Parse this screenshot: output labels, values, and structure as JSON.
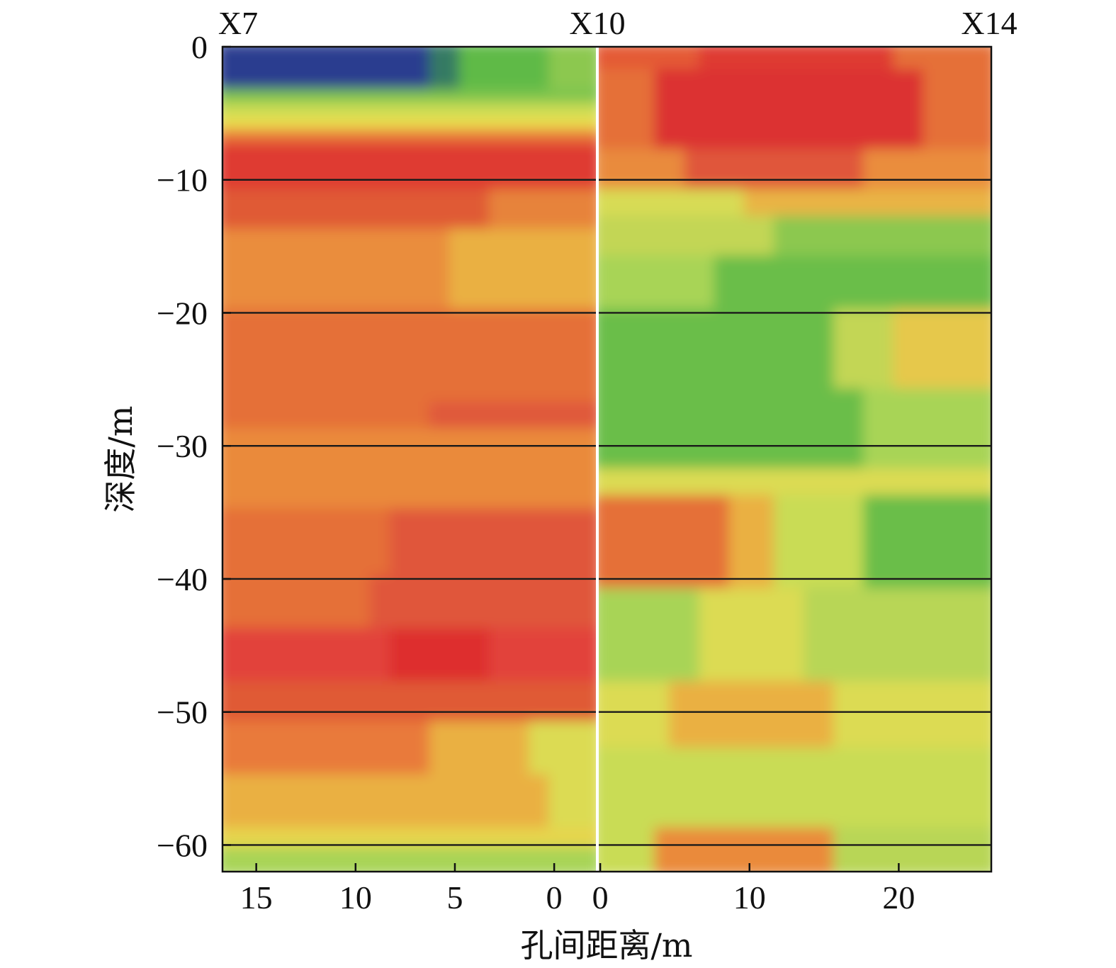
{
  "chart_data": {
    "type": "heatmap",
    "title": "",
    "xlabel": "孔间距离/m",
    "ylabel": "深度/m",
    "ylim": [
      -62,
      0
    ],
    "yticks": [
      0,
      -10,
      -20,
      -30,
      -40,
      -50,
      -60
    ],
    "boreholes": [
      "X7",
      "X10",
      "X14"
    ],
    "panels": [
      {
        "name": "X7-X10",
        "xlim": [
          16.7,
          -2.1
        ],
        "xticks": [
          15,
          10,
          5,
          0
        ],
        "depth_lines": [
          -10,
          -20,
          -30,
          -40,
          -50,
          -60
        ],
        "bands": [
          {
            "from": 0,
            "to": -3.5,
            "segments": [
              {
                "from": 16.7,
                "to": 6,
                "color": "#2b3d8f"
              },
              {
                "from": 6,
                "to": 4.5,
                "color": "#347a63"
              },
              {
                "from": 4.5,
                "to": 0,
                "color": "#5fba46"
              },
              {
                "from": 0,
                "to": -2.1,
                "color": "#8cc850"
              }
            ]
          },
          {
            "from": -3.5,
            "to": -4.5,
            "segments": [
              {
                "from": 16.7,
                "to": -2.1,
                "color": "#7cc44e"
              }
            ]
          },
          {
            "from": -4.5,
            "to": -5.5,
            "segments": [
              {
                "from": 16.7,
                "to": -2.1,
                "color": "#c9dc55"
              }
            ]
          },
          {
            "from": -5.5,
            "to": -6.5,
            "segments": [
              {
                "from": 16.7,
                "to": -2.1,
                "color": "#eadf4f"
              }
            ]
          },
          {
            "from": -6.5,
            "to": -7.5,
            "segments": [
              {
                "from": 16.7,
                "to": -2.1,
                "color": "#e97a3a"
              }
            ]
          },
          {
            "from": -7.5,
            "to": -11,
            "segments": [
              {
                "from": 16.7,
                "to": -2.1,
                "color": "#df3a30"
              }
            ]
          },
          {
            "from": -11,
            "to": -14,
            "segments": [
              {
                "from": 16.7,
                "to": 3,
                "color": "#e05a35"
              },
              {
                "from": 3,
                "to": -2.1,
                "color": "#e7833b"
              }
            ]
          },
          {
            "from": -14,
            "to": -20,
            "segments": [
              {
                "from": 16.7,
                "to": 5,
                "color": "#ea8d3d"
              },
              {
                "from": 5,
                "to": -2.1,
                "color": "#eab043"
              }
            ]
          },
          {
            "from": -20,
            "to": -27,
            "segments": [
              {
                "from": 16.7,
                "to": -2.1,
                "color": "#e56f37"
              }
            ]
          },
          {
            "from": -27,
            "to": -29,
            "segments": [
              {
                "from": 16.7,
                "to": 6,
                "color": "#e56f37"
              },
              {
                "from": 6,
                "to": -2.1,
                "color": "#e0593a"
              }
            ]
          },
          {
            "from": -29,
            "to": -35,
            "segments": [
              {
                "from": 16.7,
                "to": -2.1,
                "color": "#ea8a3b"
              }
            ]
          },
          {
            "from": -35,
            "to": -40,
            "segments": [
              {
                "from": 16.7,
                "to": 8,
                "color": "#e56f37"
              },
              {
                "from": 8,
                "to": -2.1,
                "color": "#e0573a"
              }
            ]
          },
          {
            "from": -40,
            "to": -44,
            "segments": [
              {
                "from": 16.7,
                "to": 9,
                "color": "#e56f37"
              },
              {
                "from": 9,
                "to": -2.1,
                "color": "#e0573a"
              }
            ]
          },
          {
            "from": -44,
            "to": -48,
            "segments": [
              {
                "from": 16.7,
                "to": 8,
                "color": "#e2433a"
              },
              {
                "from": 8,
                "to": 3,
                "color": "#de2f2e"
              },
              {
                "from": 3,
                "to": -2.1,
                "color": "#e2433a"
              }
            ]
          },
          {
            "from": -48,
            "to": -51,
            "segments": [
              {
                "from": 16.7,
                "to": -2.1,
                "color": "#e05a35"
              }
            ]
          },
          {
            "from": -51,
            "to": -55,
            "segments": [
              {
                "from": 16.7,
                "to": 6,
                "color": "#e97a3a"
              },
              {
                "from": 6,
                "to": 1,
                "color": "#eab043"
              },
              {
                "from": 1,
                "to": -2.1,
                "color": "#dcdb52"
              }
            ]
          },
          {
            "from": -55,
            "to": -59,
            "segments": [
              {
                "from": 16.7,
                "to": 0,
                "color": "#eab043"
              },
              {
                "from": 0,
                "to": -2.1,
                "color": "#dcdb52"
              }
            ]
          },
          {
            "from": -59,
            "to": -60.5,
            "segments": [
              {
                "from": 16.7,
                "to": -2.1,
                "color": "#e6d54e"
              }
            ]
          },
          {
            "from": -60.5,
            "to": -62,
            "segments": [
              {
                "from": 16.7,
                "to": -2.1,
                "color": "#a8d457"
              }
            ]
          }
        ]
      },
      {
        "name": "X10-X14",
        "xlim": [
          -0.1,
          26.2
        ],
        "xticks": [
          0,
          10,
          20
        ],
        "depth_lines": [
          -10,
          -20,
          -30,
          -40,
          -50,
          -60
        ],
        "bands": [
          {
            "from": 0,
            "to": -2,
            "segments": [
              {
                "from": -0.1,
                "to": 7,
                "color": "#e45a36"
              },
              {
                "from": 7,
                "to": 20,
                "color": "#df3a30"
              },
              {
                "from": 20,
                "to": 26.2,
                "color": "#e56f37"
              }
            ]
          },
          {
            "from": -2,
            "to": -8,
            "segments": [
              {
                "from": -0.1,
                "to": 4,
                "color": "#e56f37"
              },
              {
                "from": 4,
                "to": 22,
                "color": "#dc3330"
              },
              {
                "from": 22,
                "to": 26.2,
                "color": "#e56f37"
              }
            ]
          },
          {
            "from": -8,
            "to": -11,
            "segments": [
              {
                "from": -0.1,
                "to": 6,
                "color": "#e98b3c"
              },
              {
                "from": 6,
                "to": 18,
                "color": "#e0573a"
              },
              {
                "from": 18,
                "to": 26.2,
                "color": "#ea8d3d"
              }
            ]
          },
          {
            "from": -11,
            "to": -13,
            "segments": [
              {
                "from": -0.1,
                "to": 10,
                "color": "#d8dc55"
              },
              {
                "from": 10,
                "to": 26.2,
                "color": "#e9b445"
              }
            ]
          },
          {
            "from": -13,
            "to": -16,
            "segments": [
              {
                "from": -0.1,
                "to": 12,
                "color": "#c3d655"
              },
              {
                "from": 12,
                "to": 26.2,
                "color": "#8cc850"
              }
            ]
          },
          {
            "from": -16,
            "to": -20,
            "segments": [
              {
                "from": -0.1,
                "to": 8,
                "color": "#a8d457"
              },
              {
                "from": 8,
                "to": 26.2,
                "color": "#6bbe48"
              }
            ]
          },
          {
            "from": -20,
            "to": -26,
            "segments": [
              {
                "from": -0.1,
                "to": 16,
                "color": "#6bbe48"
              },
              {
                "from": 16,
                "to": 20,
                "color": "#c3d655"
              },
              {
                "from": 20,
                "to": 26.2,
                "color": "#e6c84c"
              }
            ]
          },
          {
            "from": -26,
            "to": -32,
            "segments": [
              {
                "from": -0.1,
                "to": 18,
                "color": "#6bbe48"
              },
              {
                "from": 18,
                "to": 26.2,
                "color": "#a8d457"
              }
            ]
          },
          {
            "from": -32,
            "to": -34,
            "segments": [
              {
                "from": -0.1,
                "to": 26.2,
                "color": "#dcdb52"
              }
            ]
          },
          {
            "from": -34,
            "to": -41,
            "segments": [
              {
                "from": -0.1,
                "to": 9,
                "color": "#e56f37"
              },
              {
                "from": 9,
                "to": 12,
                "color": "#eab043"
              },
              {
                "from": 12,
                "to": 18,
                "color": "#c9dc55"
              },
              {
                "from": 18,
                "to": 26.2,
                "color": "#6bbe48"
              }
            ]
          },
          {
            "from": -41,
            "to": -48,
            "segments": [
              {
                "from": -0.1,
                "to": 7,
                "color": "#a8d457"
              },
              {
                "from": 7,
                "to": 14,
                "color": "#dcdb52"
              },
              {
                "from": 14,
                "to": 26.2,
                "color": "#b8d656"
              }
            ]
          },
          {
            "from": -48,
            "to": -53,
            "segments": [
              {
                "from": -0.1,
                "to": 5,
                "color": "#dcdb52"
              },
              {
                "from": 5,
                "to": 16,
                "color": "#eab043"
              },
              {
                "from": 16,
                "to": 26.2,
                "color": "#dcdb52"
              }
            ]
          },
          {
            "from": -53,
            "to": -59,
            "segments": [
              {
                "from": -0.1,
                "to": 26.2,
                "color": "#c9dc55"
              }
            ]
          },
          {
            "from": -59,
            "to": -62,
            "segments": [
              {
                "from": -0.1,
                "to": 4,
                "color": "#c9dc55"
              },
              {
                "from": 4,
                "to": 16,
                "color": "#ea8a3b"
              },
              {
                "from": 16,
                "to": 26.2,
                "color": "#b8d656"
              }
            ]
          }
        ]
      }
    ]
  }
}
